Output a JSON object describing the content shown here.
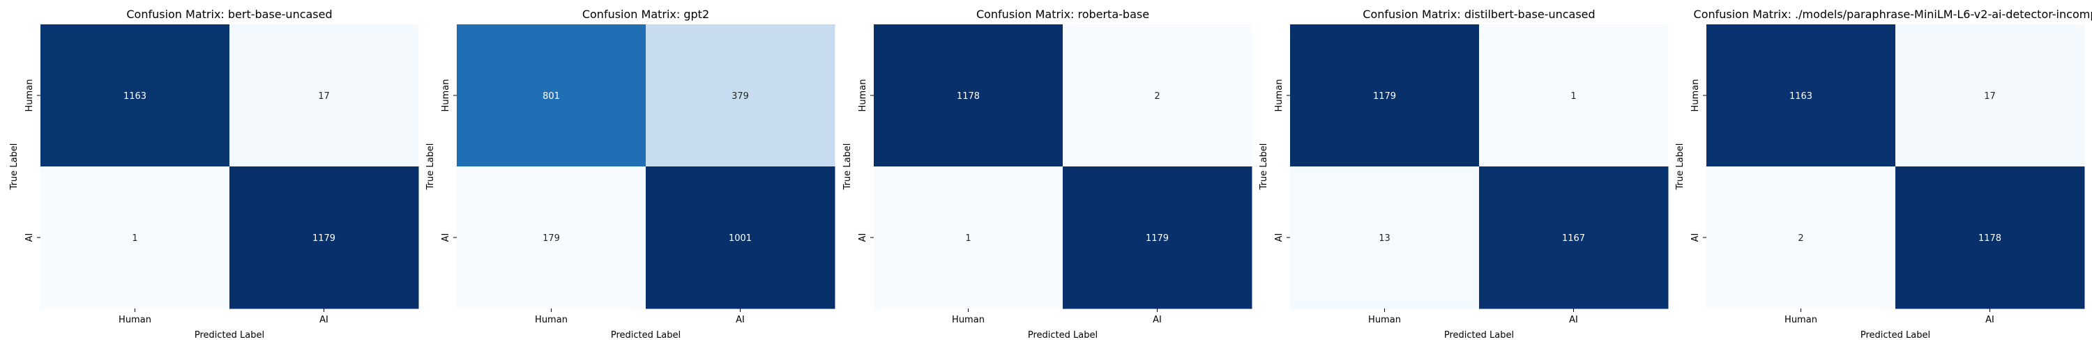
{
  "chart_data": [
    {
      "type": "heatmap",
      "title": "Confusion Matrix: bert-base-uncased",
      "xlabel": "Predicted Label",
      "ylabel": "True Label",
      "x_categories": [
        "Human",
        "AI"
      ],
      "y_categories": [
        "Human",
        "AI"
      ],
      "values": [
        [
          1163,
          17
        ],
        [
          1,
          1179
        ]
      ],
      "colormap": "Blues",
      "vmin": 1,
      "vmax": 1179,
      "colorbar": false
    },
    {
      "type": "heatmap",
      "title": "Confusion Matrix: gpt2",
      "xlabel": "Predicted Label",
      "ylabel": "True Label",
      "x_categories": [
        "Human",
        "AI"
      ],
      "y_categories": [
        "Human",
        "AI"
      ],
      "values": [
        [
          801,
          379
        ],
        [
          179,
          1001
        ]
      ],
      "colormap": "Blues",
      "vmin": 179,
      "vmax": 1001,
      "colorbar": false
    },
    {
      "type": "heatmap",
      "title": "Confusion Matrix: roberta-base",
      "xlabel": "Predicted Label",
      "ylabel": "True Label",
      "x_categories": [
        "Human",
        "AI"
      ],
      "y_categories": [
        "Human",
        "AI"
      ],
      "values": [
        [
          1178,
          2
        ],
        [
          1,
          1179
        ]
      ],
      "colormap": "Blues",
      "vmin": 1,
      "vmax": 1179,
      "colorbar": false
    },
    {
      "type": "heatmap",
      "title": "Confusion Matrix: distilbert-base-uncased",
      "xlabel": "Predicted Label",
      "ylabel": "True Label",
      "x_categories": [
        "Human",
        "AI"
      ],
      "y_categories": [
        "Human",
        "AI"
      ],
      "values": [
        [
          1179,
          1
        ],
        [
          13,
          1167
        ]
      ],
      "colormap": "Blues",
      "vmin": 1,
      "vmax": 1179,
      "colorbar": false
    },
    {
      "type": "heatmap",
      "title": "Confusion Matrix: ./models/paraphrase-MiniLM-L6-v2-ai-detector-incomp",
      "xlabel": "Predicted Label",
      "ylabel": "True Label",
      "x_categories": [
        "Human",
        "AI"
      ],
      "y_categories": [
        "Human",
        "AI"
      ],
      "values": [
        [
          1163,
          17
        ],
        [
          2,
          1178
        ]
      ],
      "colormap": "Blues",
      "vmin": 2,
      "vmax": 1178,
      "colorbar": false
    }
  ],
  "colors": {
    "blues_low": "#f7fbff",
    "blues_mid": "#6baed6",
    "blues_high": "#08306b",
    "text_light": "#ffffff",
    "text_dark": "#262626"
  }
}
